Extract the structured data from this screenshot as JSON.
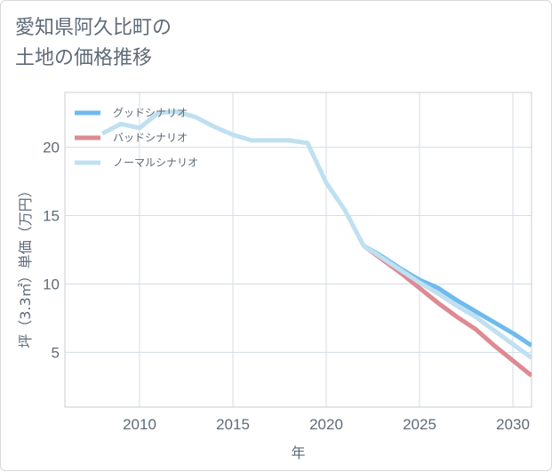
{
  "title_lines": [
    "愛知県阿久比町の",
    "土地の価格推移"
  ],
  "chart_data": {
    "type": "line",
    "xlabel": "年",
    "ylabel": "坪（3.3㎡）単価（万円）",
    "xlim": [
      2006,
      2031
    ],
    "ylim": [
      1,
      24
    ],
    "x_ticks": [
      2010,
      2015,
      2020,
      2025,
      2030
    ],
    "y_ticks": [
      5,
      10,
      15,
      20
    ],
    "grid": true,
    "legend_position": "top-left",
    "series": [
      {
        "name": "グッドシナリオ",
        "color": "#6ebbec",
        "x": [
          2022,
          2023,
          2024,
          2025,
          2026,
          2027,
          2028,
          2029,
          2030,
          2031
        ],
        "y": [
          12.8,
          12.0,
          11.1,
          10.3,
          9.7,
          8.8,
          8.0,
          7.2,
          6.4,
          5.5
        ]
      },
      {
        "name": "バッドシナリオ",
        "color": "#dd8a93",
        "x": [
          2022,
          2023,
          2024,
          2025,
          2026,
          2027,
          2028,
          2029,
          2030,
          2031
        ],
        "y": [
          12.8,
          11.8,
          10.8,
          9.7,
          8.6,
          7.6,
          6.7,
          5.5,
          4.4,
          3.3
        ]
      },
      {
        "name": "ノーマルシナリオ",
        "color": "#bfe0f0",
        "x": [
          2008,
          2009,
          2010,
          2011,
          2012,
          2013,
          2014,
          2015,
          2016,
          2017,
          2018,
          2019,
          2020,
          2021,
          2022,
          2023,
          2024,
          2025,
          2026,
          2027,
          2028,
          2029,
          2030,
          2031
        ],
        "y": [
          21.0,
          21.7,
          21.4,
          22.5,
          22.6,
          22.2,
          21.5,
          20.9,
          20.5,
          20.5,
          20.5,
          20.3,
          17.4,
          15.4,
          12.8,
          11.9,
          11.0,
          10.1,
          9.3,
          8.4,
          7.6,
          6.6,
          5.6,
          4.6
        ]
      }
    ]
  }
}
